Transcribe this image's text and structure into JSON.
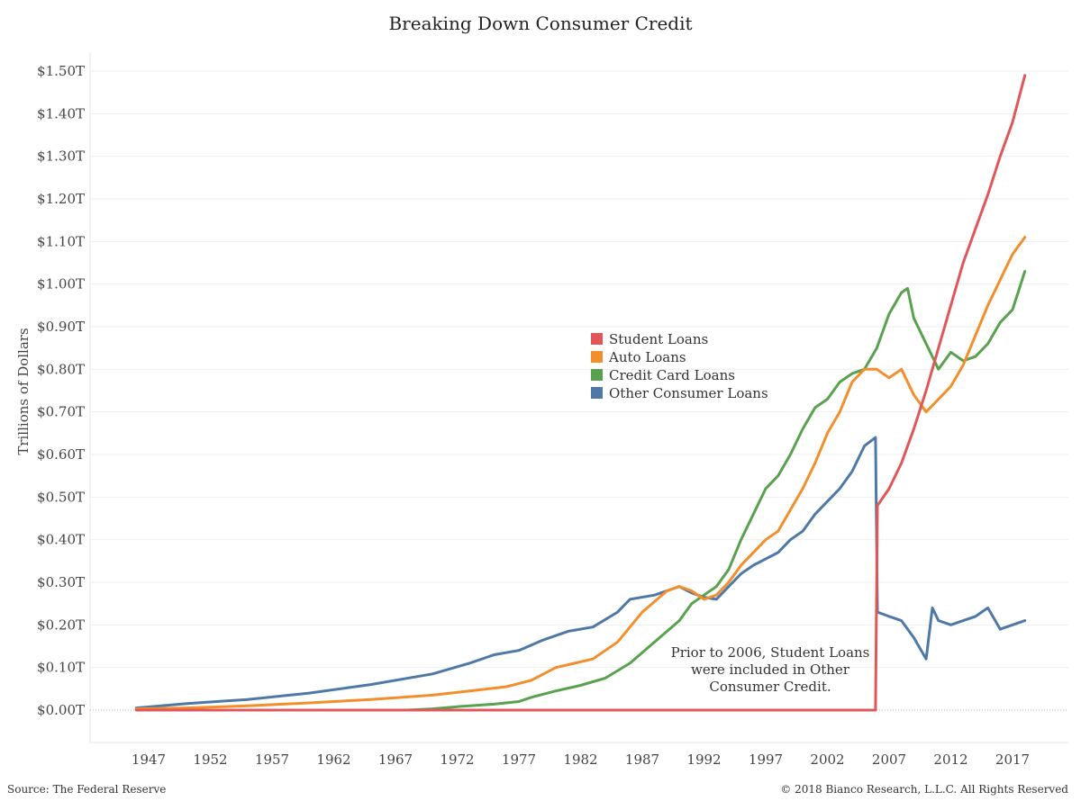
{
  "title": "Breaking Down Consumer Credit",
  "source": "Source: The Federal Reserve",
  "copyright": "© 2018 Bianco Research, L.L.C. All Rights Reserved",
  "chart_data": {
    "type": "line",
    "title": "Breaking Down Consumer Credit",
    "xlabel": "",
    "ylabel": "Trillions of Dollars",
    "xlim": [
      1943,
      2020
    ],
    "ylim": [
      0,
      1.5
    ],
    "x_ticks": [
      "1947",
      "1952",
      "1957",
      "1962",
      "1967",
      "1972",
      "1977",
      "1982",
      "1987",
      "1992",
      "1997",
      "2002",
      "2007",
      "2012",
      "2017"
    ],
    "y_ticks": [
      "$0.00T",
      "$0.10T",
      "$0.20T",
      "$0.30T",
      "$0.40T",
      "$0.50T",
      "$0.60T",
      "$0.70T",
      "$0.80T",
      "$0.90T",
      "$1.00T",
      "$1.10T",
      "$1.20T",
      "$1.30T",
      "$1.40T",
      "$1.50T"
    ],
    "grid": "horizontal",
    "legend": "center",
    "series": [
      {
        "name": "Student Loans",
        "color": "#e15759",
        "points": [
          [
            1946,
            0
          ],
          [
            2005.9,
            0
          ],
          [
            2006.05,
            0.48
          ],
          [
            2007,
            0.52
          ],
          [
            2008,
            0.58
          ],
          [
            2009,
            0.66
          ],
          [
            2010,
            0.75
          ],
          [
            2011,
            0.85
          ],
          [
            2012,
            0.95
          ],
          [
            2013,
            1.05
          ],
          [
            2014,
            1.13
          ],
          [
            2015,
            1.21
          ],
          [
            2016,
            1.3
          ],
          [
            2017,
            1.38
          ],
          [
            2018,
            1.49
          ]
        ]
      },
      {
        "name": "Auto Loans",
        "color": "#f28e2b",
        "points": [
          [
            1946,
            0.003
          ],
          [
            1950,
            0.005
          ],
          [
            1955,
            0.01
          ],
          [
            1960,
            0.017
          ],
          [
            1965,
            0.025
          ],
          [
            1970,
            0.035
          ],
          [
            1973,
            0.045
          ],
          [
            1976,
            0.055
          ],
          [
            1978,
            0.07
          ],
          [
            1980,
            0.1
          ],
          [
            1983,
            0.12
          ],
          [
            1985,
            0.16
          ],
          [
            1987,
            0.23
          ],
          [
            1989,
            0.28
          ],
          [
            1990,
            0.29
          ],
          [
            1991,
            0.28
          ],
          [
            1992,
            0.26
          ],
          [
            1993,
            0.27
          ],
          [
            1994,
            0.3
          ],
          [
            1995,
            0.34
          ],
          [
            1996,
            0.37
          ],
          [
            1997,
            0.4
          ],
          [
            1998,
            0.42
          ],
          [
            1999,
            0.47
          ],
          [
            2000,
            0.52
          ],
          [
            2001,
            0.58
          ],
          [
            2002,
            0.65
          ],
          [
            2003,
            0.7
          ],
          [
            2004,
            0.77
          ],
          [
            2005,
            0.8
          ],
          [
            2006,
            0.8
          ],
          [
            2007,
            0.78
          ],
          [
            2008,
            0.8
          ],
          [
            2009,
            0.74
          ],
          [
            2010,
            0.7
          ],
          [
            2011,
            0.73
          ],
          [
            2012,
            0.76
          ],
          [
            2013,
            0.81
          ],
          [
            2014,
            0.88
          ],
          [
            2015,
            0.95
          ],
          [
            2016,
            1.01
          ],
          [
            2017,
            1.07
          ],
          [
            2018,
            1.11
          ]
        ]
      },
      {
        "name": "Credit Card Loans",
        "color": "#59a14f",
        "points": [
          [
            1968,
            0
          ],
          [
            1970,
            0.003
          ],
          [
            1972,
            0.008
          ],
          [
            1975,
            0.014
          ],
          [
            1977,
            0.02
          ],
          [
            1978,
            0.03
          ],
          [
            1980,
            0.045
          ],
          [
            1982,
            0.058
          ],
          [
            1984,
            0.075
          ],
          [
            1986,
            0.11
          ],
          [
            1988,
            0.16
          ],
          [
            1990,
            0.21
          ],
          [
            1991,
            0.25
          ],
          [
            1992,
            0.27
          ],
          [
            1993,
            0.29
          ],
          [
            1994,
            0.33
          ],
          [
            1995,
            0.4
          ],
          [
            1996,
            0.46
          ],
          [
            1997,
            0.52
          ],
          [
            1998,
            0.55
          ],
          [
            1999,
            0.6
          ],
          [
            2000,
            0.66
          ],
          [
            2001,
            0.71
          ],
          [
            2002,
            0.73
          ],
          [
            2003,
            0.77
          ],
          [
            2004,
            0.79
          ],
          [
            2005,
            0.8
          ],
          [
            2006,
            0.85
          ],
          [
            2007,
            0.93
          ],
          [
            2008,
            0.98
          ],
          [
            2008.5,
            0.99
          ],
          [
            2009,
            0.92
          ],
          [
            2010,
            0.86
          ],
          [
            2011,
            0.8
          ],
          [
            2012,
            0.84
          ],
          [
            2013,
            0.82
          ],
          [
            2014,
            0.83
          ],
          [
            2015,
            0.86
          ],
          [
            2016,
            0.91
          ],
          [
            2017,
            0.94
          ],
          [
            2018,
            1.03
          ]
        ]
      },
      {
        "name": "Other Consumer Loans",
        "color": "#4e79a7",
        "points": [
          [
            1946,
            0.005
          ],
          [
            1950,
            0.015
          ],
          [
            1955,
            0.025
          ],
          [
            1960,
            0.04
          ],
          [
            1965,
            0.06
          ],
          [
            1970,
            0.085
          ],
          [
            1973,
            0.11
          ],
          [
            1975,
            0.13
          ],
          [
            1977,
            0.14
          ],
          [
            1979,
            0.165
          ],
          [
            1981,
            0.185
          ],
          [
            1983,
            0.195
          ],
          [
            1985,
            0.23
          ],
          [
            1986,
            0.26
          ],
          [
            1988,
            0.27
          ],
          [
            1990,
            0.29
          ],
          [
            1991,
            0.275
          ],
          [
            1992,
            0.265
          ],
          [
            1993,
            0.26
          ],
          [
            1994,
            0.29
          ],
          [
            1995,
            0.32
          ],
          [
            1996,
            0.34
          ],
          [
            1997,
            0.355
          ],
          [
            1998,
            0.37
          ],
          [
            1999,
            0.4
          ],
          [
            2000,
            0.42
          ],
          [
            2001,
            0.46
          ],
          [
            2002,
            0.49
          ],
          [
            2003,
            0.52
          ],
          [
            2004,
            0.56
          ],
          [
            2005,
            0.62
          ],
          [
            2005.9,
            0.64
          ],
          [
            2006.05,
            0.23
          ],
          [
            2007,
            0.22
          ],
          [
            2008,
            0.21
          ],
          [
            2009,
            0.17
          ],
          [
            2010,
            0.12
          ],
          [
            2010.5,
            0.24
          ],
          [
            2011,
            0.21
          ],
          [
            2012,
            0.2
          ],
          [
            2013,
            0.21
          ],
          [
            2014,
            0.22
          ],
          [
            2015,
            0.24
          ],
          [
            2016,
            0.19
          ],
          [
            2017,
            0.2
          ],
          [
            2018,
            0.21
          ]
        ]
      }
    ],
    "annotation": {
      "lines": [
        "Prior to 2006, Student Loans",
        "were included in Other",
        "Consumer Credit."
      ],
      "x": 2000,
      "y": 0.12
    }
  }
}
